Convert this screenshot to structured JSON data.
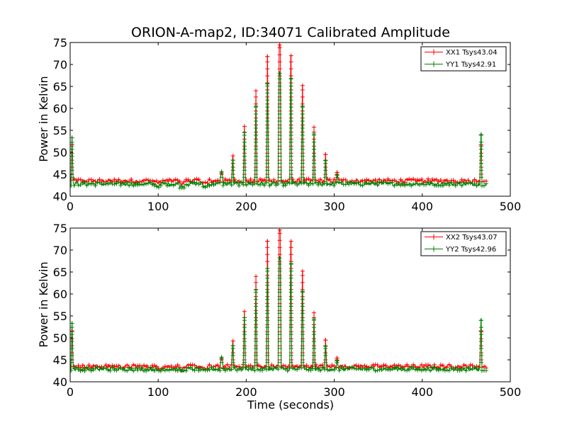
{
  "figure": {
    "title": "ORION-A-map2, ID:34071 Calibrated Amplitude",
    "xlabel": "Time (seconds)"
  },
  "colors": {
    "xx": "#ff0000",
    "yy": "#007f00",
    "axes": "#000000",
    "background": "#ffffff"
  },
  "chart_data": [
    {
      "type": "line",
      "title": "ORION-A-map2, ID:34071 Calibrated Amplitude",
      "xlabel": "",
      "ylabel": "Power in Kelvin",
      "xlim": [
        0,
        500
      ],
      "ylim": [
        40,
        75
      ],
      "xticks": [
        0,
        100,
        200,
        300,
        400,
        500
      ],
      "yticks": [
        40,
        45,
        50,
        55,
        60,
        65,
        70,
        75
      ],
      "grid": false,
      "legend": "top-right",
      "markers": "+",
      "series": [
        {
          "name": "XX1 Tsys43.04",
          "color": "#ff0000",
          "baseline": 43.5,
          "peaks": [
            [
              2,
              51.8
            ],
            [
              172,
              45.3
            ],
            [
              185,
              49.2
            ],
            [
              198,
              55.9
            ],
            [
              211,
              64.0
            ],
            [
              224,
              71.8
            ],
            [
              238,
              74.5
            ],
            [
              251,
              72.0
            ],
            [
              264,
              65.2
            ],
            [
              277,
              55.7
            ],
            [
              290,
              49.5
            ],
            [
              303,
              45.4
            ],
            [
              467,
              51.7
            ]
          ]
        },
        {
          "name": "YY1 Tsys42.91",
          "color": "#007f00",
          "baseline": 42.8,
          "peaks": [
            [
              2,
              53.3
            ],
            [
              172,
              45.6
            ],
            [
              185,
              48.2
            ],
            [
              198,
              54.5
            ],
            [
              211,
              60.5
            ],
            [
              224,
              65.6
            ],
            [
              238,
              68.0
            ],
            [
              251,
              66.8
            ],
            [
              264,
              60.5
            ],
            [
              277,
              54.2
            ],
            [
              290,
              48.1
            ],
            [
              303,
              44.8
            ],
            [
              467,
              54.0
            ]
          ]
        }
      ]
    },
    {
      "type": "line",
      "title": "",
      "xlabel": "Time (seconds)",
      "ylabel": "Power in Kelvin",
      "xlim": [
        0,
        500
      ],
      "ylim": [
        40,
        75
      ],
      "xticks": [
        0,
        100,
        200,
        300,
        400,
        500
      ],
      "yticks": [
        40,
        45,
        50,
        55,
        60,
        65,
        70,
        75
      ],
      "grid": false,
      "legend": "top-right",
      "markers": "+",
      "series": [
        {
          "name": "XX2 Tsys43.07",
          "color": "#ff0000",
          "baseline": 43.5,
          "peaks": [
            [
              2,
              51.6
            ],
            [
              172,
              45.3
            ],
            [
              185,
              49.3
            ],
            [
              198,
              56.0
            ],
            [
              211,
              64.0
            ],
            [
              224,
              72.0
            ],
            [
              238,
              74.6
            ],
            [
              251,
              72.0
            ],
            [
              264,
              65.2
            ],
            [
              277,
              55.7
            ],
            [
              290,
              49.5
            ],
            [
              303,
              45.4
            ],
            [
              467,
              51.6
            ]
          ]
        },
        {
          "name": "YY2 Tsys42.96",
          "color": "#007f00",
          "baseline": 42.9,
          "peaks": [
            [
              2,
              53.3
            ],
            [
              172,
              45.6
            ],
            [
              185,
              48.2
            ],
            [
              198,
              54.6
            ],
            [
              211,
              60.9
            ],
            [
              224,
              65.8
            ],
            [
              238,
              68.2
            ],
            [
              251,
              66.9
            ],
            [
              264,
              60.6
            ],
            [
              277,
              54.3
            ],
            [
              290,
              48.1
            ],
            [
              303,
              44.8
            ],
            [
              467,
              54.0
            ]
          ]
        }
      ]
    }
  ]
}
